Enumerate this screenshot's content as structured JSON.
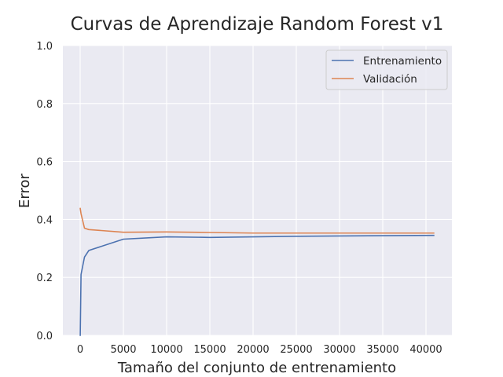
{
  "chart_data": {
    "type": "line",
    "title": "Curvas de Aprendizaje Random Forest v1",
    "xlabel": "Tamaño del conjunto de entrenamiento",
    "ylabel": "Error",
    "xlim": [
      -2000,
      43000
    ],
    "ylim": [
      0,
      1.0
    ],
    "xticks": [
      0,
      5000,
      10000,
      15000,
      20000,
      25000,
      30000,
      35000,
      40000
    ],
    "yticks": [
      0.0,
      0.2,
      0.4,
      0.6,
      0.8,
      1.0
    ],
    "grid": true,
    "legend_position": "top-right",
    "background": "#eaeaf2",
    "series": [
      {
        "name": "Entrenamiento",
        "color": "#4c72b0",
        "x": [
          10,
          100,
          500,
          1000,
          5000,
          10000,
          15000,
          20000,
          25000,
          30000,
          35000,
          40900
        ],
        "y": [
          0.0,
          0.21,
          0.27,
          0.293,
          0.332,
          0.34,
          0.338,
          0.34,
          0.342,
          0.343,
          0.344,
          0.345
        ]
      },
      {
        "name": "Validación",
        "color": "#dd8452",
        "x": [
          10,
          100,
          500,
          1000,
          5000,
          10000,
          15000,
          20000,
          25000,
          30000,
          35000,
          40900
        ],
        "y": [
          0.438,
          0.42,
          0.37,
          0.365,
          0.356,
          0.357,
          0.355,
          0.353,
          0.353,
          0.353,
          0.353,
          0.353
        ]
      }
    ]
  }
}
